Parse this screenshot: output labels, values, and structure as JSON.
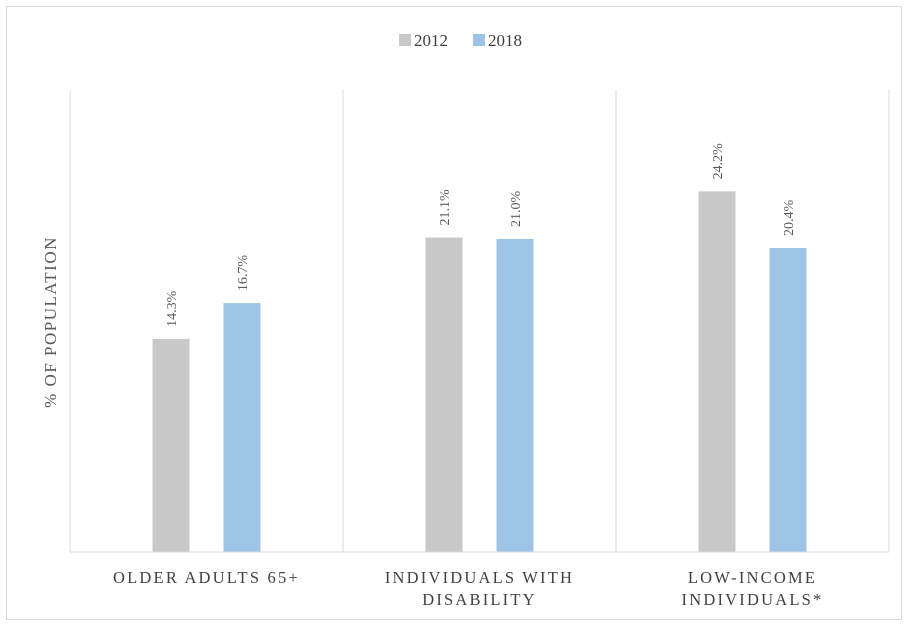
{
  "chart_data": {
    "type": "bar",
    "categories": [
      [
        "OLDER ADULTS 65+"
      ],
      [
        "INDIVIDUALS WITH",
        "DISABILITY"
      ],
      [
        "LOW-INCOME",
        "INDIVIDUALS*"
      ]
    ],
    "series": [
      {
        "name": "2012",
        "values": [
          14.3,
          21.1,
          24.2
        ],
        "labels": [
          "14.3%",
          "21.1%",
          "24.2%"
        ],
        "color": "#c8c8c8"
      },
      {
        "name": "2018",
        "values": [
          16.7,
          21.0,
          20.4
        ],
        "labels": [
          "16.7%",
          "21.0%",
          "20.4%"
        ],
        "color": "#9dc3e6"
      }
    ],
    "ylabel": "% OF POPULATION",
    "ylim": [
      0,
      31
    ],
    "legend": "top-center",
    "grid": false
  }
}
